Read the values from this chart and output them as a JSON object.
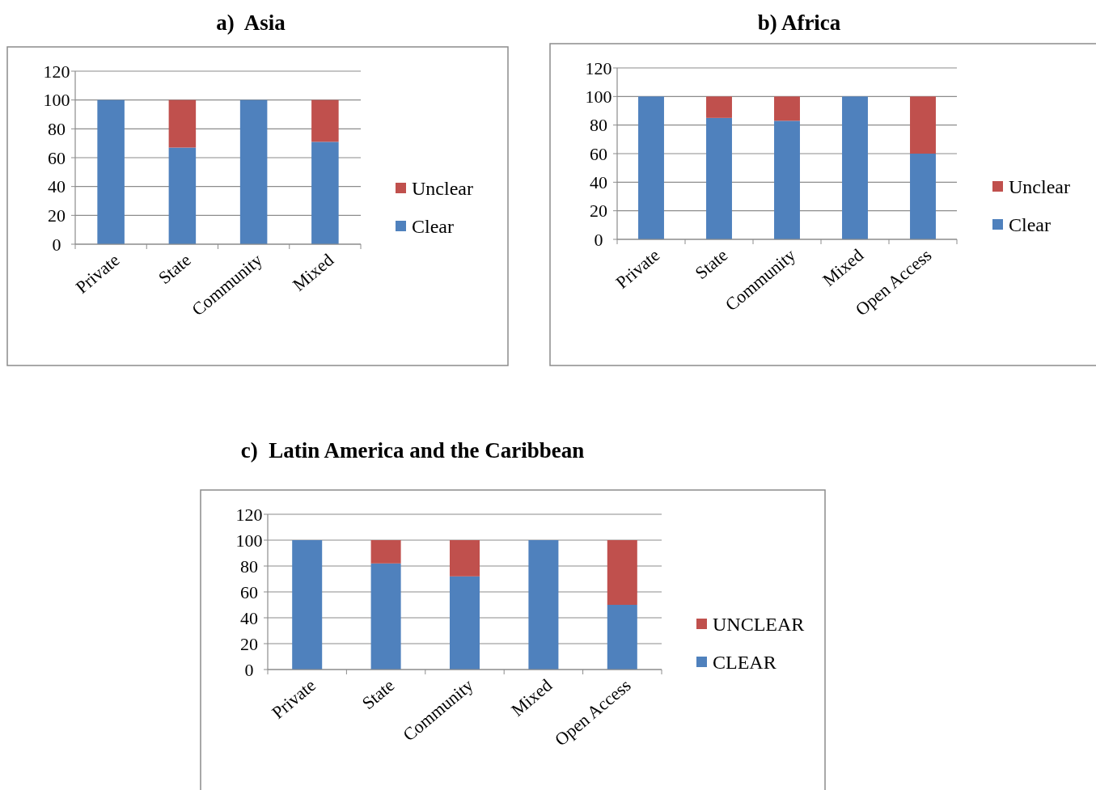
{
  "chart_data": [
    {
      "type": "bar",
      "title": "a)  Asia",
      "categories": [
        "Private",
        "State",
        "Community",
        "Mixed"
      ],
      "stacked": true,
      "ylim": [
        0,
        120
      ],
      "yticks": [
        0,
        20,
        40,
        60,
        80,
        100,
        120
      ],
      "grid": "y",
      "legend": "right",
      "series": [
        {
          "name": "Clear",
          "color": "#4f81bd",
          "values": [
            100,
            67,
            100,
            71
          ]
        },
        {
          "name": "Unclear",
          "color": "#c0504d",
          "values": [
            0,
            33,
            0,
            29
          ]
        }
      ]
    },
    {
      "type": "bar",
      "title": "b) Africa",
      "categories": [
        "Private",
        "State",
        "Community",
        "Mixed",
        "Open Access"
      ],
      "stacked": true,
      "ylim": [
        0,
        120
      ],
      "yticks": [
        0,
        20,
        40,
        60,
        80,
        100,
        120
      ],
      "grid": "y",
      "legend": "right",
      "series": [
        {
          "name": "Clear",
          "color": "#4f81bd",
          "values": [
            100,
            85,
            83,
            100,
            60
          ]
        },
        {
          "name": "Unclear",
          "color": "#c0504d",
          "values": [
            0,
            15,
            17,
            0,
            40
          ]
        }
      ]
    },
    {
      "type": "bar",
      "title": "c)  Latin America and the Caribbean",
      "categories": [
        "Private",
        "State",
        "Community",
        "Mixed",
        "Open Access"
      ],
      "stacked": true,
      "ylim": [
        0,
        120
      ],
      "yticks": [
        0,
        20,
        40,
        60,
        80,
        100,
        120
      ],
      "grid": "y",
      "legend": "right",
      "series": [
        {
          "name": "CLEAR",
          "color": "#4f81bd",
          "values": [
            100,
            82,
            72,
            100,
            50
          ]
        },
        {
          "name": "UNCLEAR",
          "color": "#c0504d",
          "values": [
            0,
            18,
            28,
            0,
            50
          ]
        }
      ]
    }
  ]
}
